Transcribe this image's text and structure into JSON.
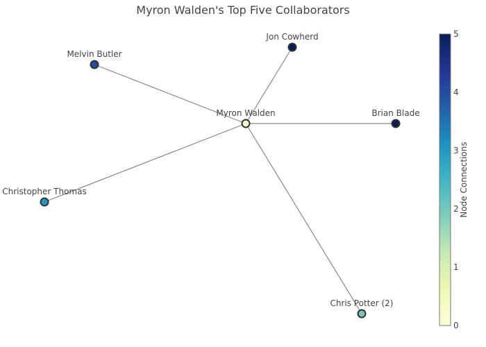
{
  "title": "Myron Walden's Top Five Collaborators",
  "nodes": [
    {
      "id": "myron",
      "label": "Myron Walden",
      "connections": 0.05
    },
    {
      "id": "jon",
      "label": "Jon Cowherd",
      "connections": 5
    },
    {
      "id": "melvin",
      "label": "Melvin Butler",
      "connections": 4
    },
    {
      "id": "brian",
      "label": "Brian Blade",
      "connections": 5
    },
    {
      "id": "christopher",
      "label": "Christopher Thomas",
      "connections": 3
    },
    {
      "id": "chris",
      "label": "Chris Potter (2)",
      "connections": 2
    }
  ],
  "edges": [
    {
      "source": "myron",
      "target": "jon"
    },
    {
      "source": "myron",
      "target": "melvin"
    },
    {
      "source": "myron",
      "target": "brian"
    },
    {
      "source": "myron",
      "target": "christopher"
    },
    {
      "source": "myron",
      "target": "chris"
    }
  ],
  "colorbar": {
    "title": "Node Connections",
    "min": 0,
    "max": 5,
    "ticks": [
      "0",
      "1",
      "2",
      "3",
      "4",
      "5"
    ],
    "colorscale": [
      "#ffffd9",
      "#edf8b1",
      "#c7e9b4",
      "#7fcdbb",
      "#41b6c4",
      "#1d91c0",
      "#225ea8",
      "#253494",
      "#081d58"
    ]
  }
}
